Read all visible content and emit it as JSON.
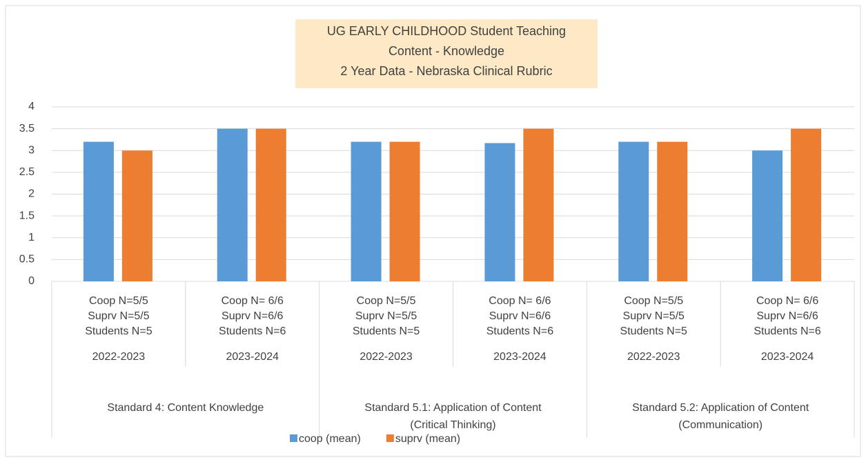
{
  "chart_data": {
    "type": "bar",
    "title": [
      "UG EARLY CHILDHOOD  Student Teaching",
      "Content - Knowledge",
      "2 Year Data - Nebraska Clinical Rubric"
    ],
    "categories": [
      [
        "Coop N=5/5",
        "Suprv N=5/5",
        "Students N=5"
      ],
      [
        "Coop N= 6/6",
        "Suprv N=6/6",
        "Students N=6"
      ],
      [
        "Coop N=5/5",
        "Suprv N=5/5",
        "Students N=5"
      ],
      [
        "Coop N= 6/6",
        "Suprv N=6/6",
        "Students N=6"
      ],
      [
        "Coop N=5/5",
        "Suprv N=5/5",
        "Students N=5"
      ],
      [
        "Coop N= 6/6",
        "Suprv N=6/6",
        "Students N=6"
      ]
    ],
    "years": [
      "2022-2023",
      "2023-2024",
      "2022-2023",
      "2023-2024",
      "2022-2023",
      "2023-2024"
    ],
    "groups": [
      [
        "Standard 4: Content Knowledge"
      ],
      [
        "Standard 5.1: Application of Content",
        "(Critical Thinking)"
      ],
      [
        "Standard 5.2: Application of Content",
        "(Communication)"
      ]
    ],
    "series": [
      {
        "name": "coop (mean)",
        "color": "#5b9bd5",
        "values": [
          3.2,
          3.5,
          3.2,
          3.17,
          3.2,
          3.0
        ]
      },
      {
        "name": "suprv (mean)",
        "color": "#ed7d31",
        "values": [
          3.0,
          3.5,
          3.2,
          3.5,
          3.2,
          3.5
        ]
      }
    ],
    "ylim": [
      0,
      4
    ],
    "yticks": [
      0,
      0.5,
      1,
      1.5,
      2,
      2.5,
      3,
      3.5,
      4
    ],
    "grid": true,
    "legend": "bottom"
  }
}
